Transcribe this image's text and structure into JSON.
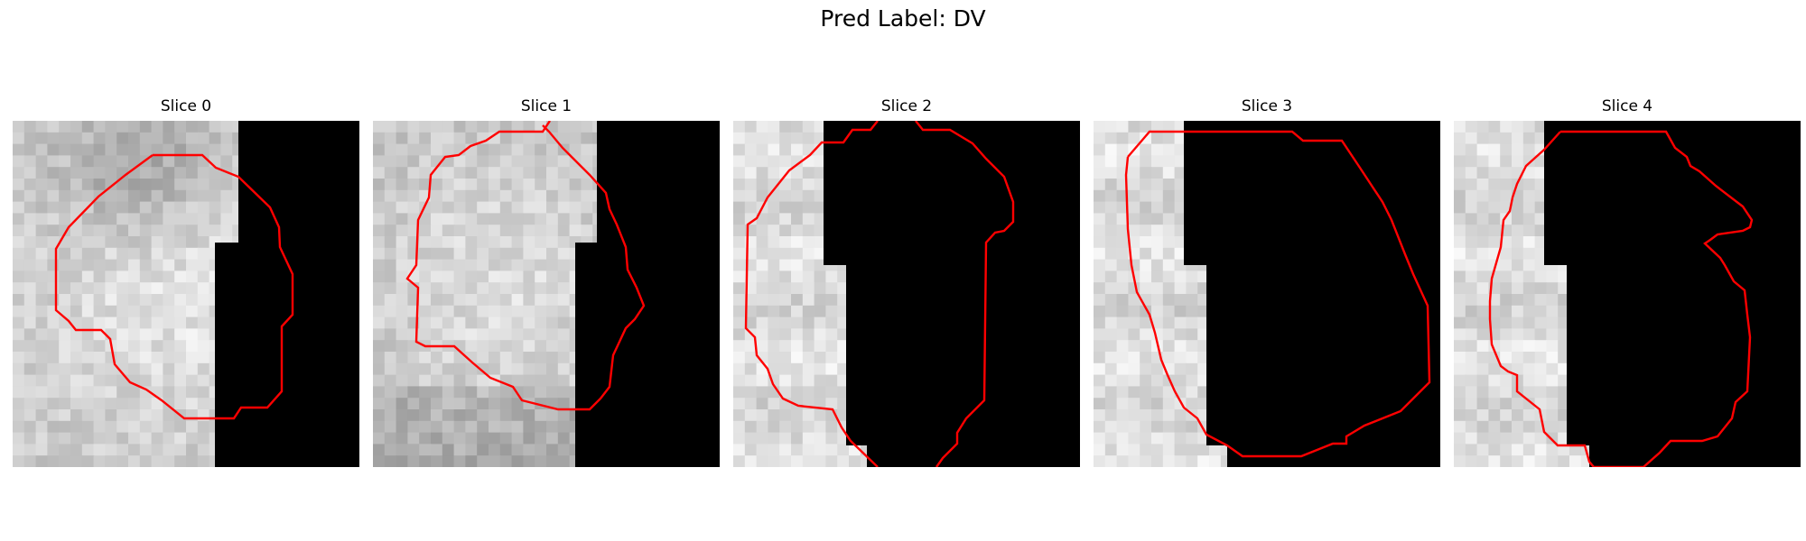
{
  "figure": {
    "title": "Pred Label: DV"
  },
  "panels": [
    {
      "title": "Slice 0"
    },
    {
      "title": "Slice 1"
    },
    {
      "title": "Slice 2"
    },
    {
      "title": "Slice 3"
    },
    {
      "title": "Slice 4"
    }
  ],
  "colors": {
    "contour": "#ff0000",
    "mask": "#000000"
  }
}
